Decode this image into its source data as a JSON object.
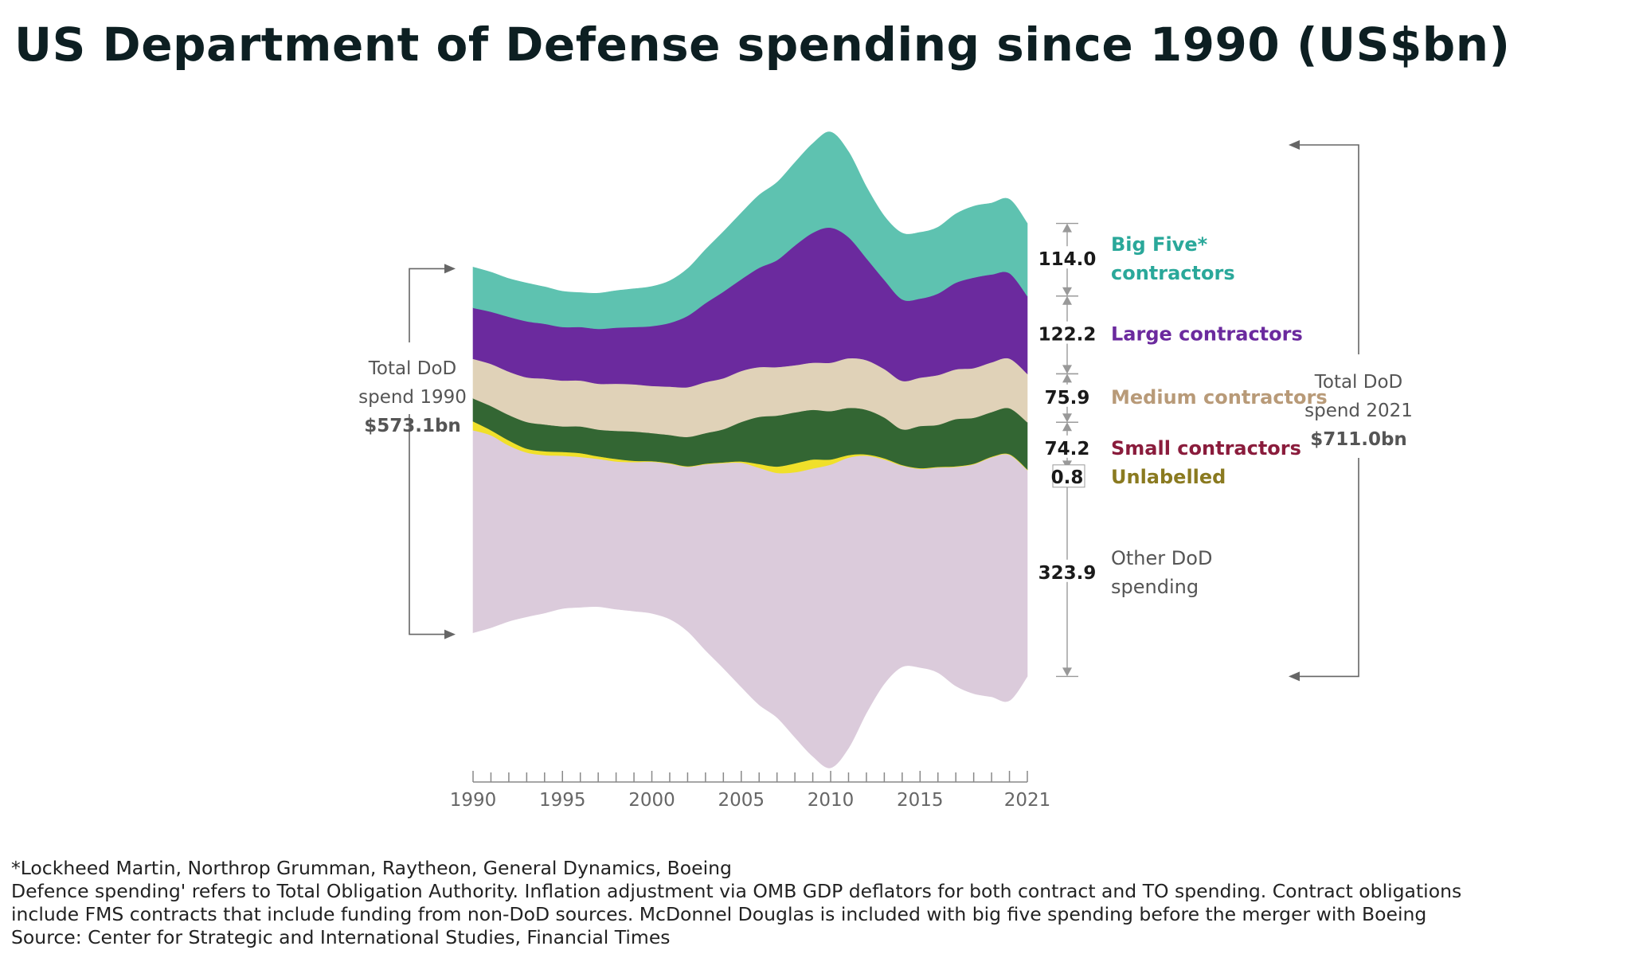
{
  "chart_data": {
    "type": "area",
    "title": "US Department of Defense spending since 1990 (US$bn)",
    "x_ticks_labeled": [
      "1990",
      "1995",
      "2000",
      "2005",
      "2010",
      "2015",
      "2021"
    ],
    "xlim": [
      1990,
      2021
    ],
    "years": [
      1990,
      1991,
      1992,
      1993,
      1994,
      1995,
      1996,
      1997,
      1998,
      1999,
      2000,
      2001,
      2002,
      2003,
      2004,
      2005,
      2006,
      2007,
      2008,
      2009,
      2010,
      2011,
      2012,
      2013,
      2014,
      2015,
      2016,
      2017,
      2018,
      2019,
      2020,
      2021
    ],
    "series": [
      {
        "name": "Other DoD spending",
        "color": "#dbcbdb",
        "values": [
          318,
          302,
          276,
          258,
          248,
          240,
          236,
          232,
          232,
          234,
          238,
          244,
          258,
          292,
          322,
          352,
          372,
          384,
          416,
          452,
          476,
          456,
          404,
          352,
          316,
          312,
          322,
          344,
          360,
          376,
          386,
          324
        ]
      },
      {
        "name": "Unlabelled",
        "color": "#f0e02a",
        "values": [
          14,
          8,
          8,
          6,
          6,
          6,
          6,
          4,
          4,
          2,
          1,
          1,
          1,
          1,
          1,
          2,
          6,
          10,
          14,
          14,
          8,
          4,
          2,
          2,
          1,
          1,
          1,
          1,
          1,
          1,
          1,
          1
        ]
      },
      {
        "name": "Small contractors",
        "color": "#336633",
        "values": [
          36,
          38,
          40,
          42,
          42,
          40,
          42,
          42,
          44,
          46,
          44,
          44,
          46,
          48,
          52,
          62,
          74,
          80,
          80,
          78,
          76,
          74,
          70,
          64,
          56,
          66,
          66,
          74,
          72,
          70,
          72,
          74
        ]
      },
      {
        "name": "Medium contractors",
        "color": "#e0d2b8",
        "values": [
          62,
          66,
          68,
          70,
          72,
          72,
          72,
          72,
          74,
          74,
          74,
          76,
          78,
          80,
          80,
          80,
          78,
          76,
          74,
          74,
          76,
          78,
          78,
          76,
          76,
          76,
          78,
          78,
          78,
          78,
          78,
          76
        ]
      },
      {
        "name": "Large contractors",
        "color": "#6b2a9e",
        "values": [
          80,
          82,
          86,
          88,
          86,
          84,
          84,
          86,
          88,
          90,
          94,
          100,
          112,
          124,
          136,
          144,
          156,
          168,
          188,
          204,
          212,
          190,
          160,
          140,
          128,
          124,
          128,
          136,
          142,
          138,
          134,
          122
        ]
      },
      {
        "name": "Big Five contractors",
        "color": "#5ec2b0",
        "values": [
          64,
          62,
          60,
          60,
          58,
          56,
          54,
          56,
          58,
          60,
          62,
          66,
          74,
          84,
          94,
          104,
          114,
          122,
          130,
          140,
          150,
          134,
          112,
          100,
          104,
          104,
          104,
          108,
          112,
          112,
          116,
          114
        ]
      }
    ],
    "end_labels": [
      {
        "value": "114.0",
        "label": [
          "Big Five*",
          "contractors"
        ],
        "color": "#2aa89a"
      },
      {
        "value": "122.2",
        "label": [
          "Large contractors"
        ],
        "color": "#6b2a9e"
      },
      {
        "value": "75.9",
        "label": [
          "Medium contractors"
        ],
        "color": "#b89a78"
      },
      {
        "value": "74.2",
        "label": [
          "Small contractors"
        ],
        "color": "#8a1c3c"
      },
      {
        "value": "0.8",
        "label": [
          "Unlabelled"
        ],
        "color": "#8a7a20"
      },
      {
        "value": "323.9",
        "label": [
          "Other DoD",
          "spending"
        ],
        "color": "#555555"
      }
    ],
    "annotations": {
      "total_1990": [
        "Total DoD",
        "spend 1990",
        "$573.1bn"
      ],
      "total_2021": [
        "Total DoD",
        "spend 2021",
        "$711.0bn"
      ]
    },
    "axis_color": "#888888",
    "text_dark": "#1a1a1a"
  },
  "footnotes": [
    "*Lockheed Martin, Northrop Grumman, Raytheon, General Dynamics, Boeing",
    "Defence spending' refers to Total Obligation Authority. Inflation adjustment via OMB GDP deflators for both contract and TO spending. Contract obligations",
    "include FMS contracts that include funding from non-DoD sources. McDonnel Douglas is included with big five spending before the merger with Boeing",
    "Source: Center for Strategic and International Studies, Financial Times"
  ]
}
